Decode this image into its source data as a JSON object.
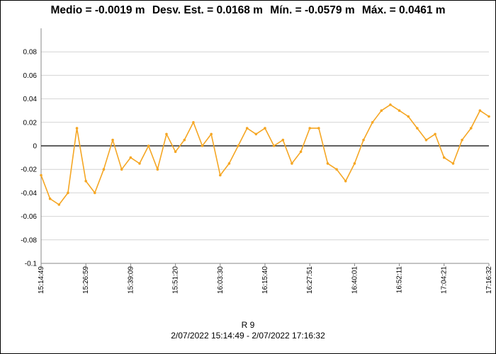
{
  "title_parts": [
    "Medio = -0.0019 m",
    "Desv. Est. = 0.0168 m",
    "Mín. = -0.0579 m",
    "Máx. = 0.0461 m"
  ],
  "footer": {
    "series_label": "R 9",
    "date_range": "2/07/2022 15:14:49 - 2/07/2022 17:16:32"
  },
  "chart_data": {
    "type": "line",
    "title": "Medio = -0.0019 m  Desv. Est. = 0.0168 m  Mín. = -0.0579 m  Máx. = 0.0461 m",
    "xlabel": "R 9",
    "ylabel": "",
    "ylim": [
      -0.1,
      0.1
    ],
    "yticks": [
      -0.1,
      -0.08,
      -0.06,
      -0.04,
      -0.02,
      0,
      0.02,
      0.04,
      0.06,
      0.08
    ],
    "xticks": [
      "15:14:49",
      "15:26:59",
      "15:39:09",
      "15:51:20",
      "16:03:30",
      "16:15:40",
      "16:27:51",
      "16:40:01",
      "16:52:11",
      "17:04:21",
      "17:16:32"
    ],
    "grid": true,
    "zero_line": true,
    "series_color": "#f5a623",
    "series": [
      {
        "name": "R 9",
        "x": [
          "15:14:49",
          "15:17:15",
          "15:19:41",
          "15:22:07",
          "15:24:33",
          "15:26:59",
          "15:29:25",
          "15:31:51",
          "15:34:17",
          "15:36:43",
          "15:39:09",
          "15:41:35",
          "15:44:01",
          "15:46:28",
          "15:48:54",
          "15:51:20",
          "15:53:46",
          "15:56:12",
          "15:58:38",
          "16:01:04",
          "16:03:30",
          "16:05:56",
          "16:08:22",
          "16:10:48",
          "16:13:14",
          "16:15:40",
          "16:18:06",
          "16:20:33",
          "16:22:59",
          "16:25:25",
          "16:27:51",
          "16:30:17",
          "16:32:43",
          "16:35:09",
          "16:37:35",
          "16:40:01",
          "16:42:27",
          "16:44:53",
          "16:47:19",
          "16:49:45",
          "16:52:11",
          "16:54:37",
          "16:57:03",
          "16:59:29",
          "17:01:55",
          "17:04:21",
          "17:06:48",
          "17:09:14",
          "17:11:40",
          "17:14:06",
          "17:16:32"
        ],
        "y": [
          -0.025,
          -0.045,
          -0.05,
          -0.04,
          0.015,
          -0.03,
          -0.04,
          -0.02,
          0.005,
          -0.02,
          -0.01,
          -0.015,
          0.0,
          -0.02,
          0.01,
          -0.005,
          0.005,
          0.02,
          0.0,
          0.01,
          -0.025,
          -0.015,
          0.0,
          0.015,
          0.01,
          0.015,
          0.0,
          0.005,
          -0.015,
          -0.005,
          0.015,
          0.015,
          -0.015,
          -0.02,
          -0.03,
          -0.015,
          0.005,
          0.02,
          0.03,
          0.035,
          0.03,
          0.025,
          0.015,
          0.005,
          0.01,
          -0.01,
          -0.015,
          0.005,
          0.015,
          0.03,
          0.025
        ]
      }
    ]
  }
}
